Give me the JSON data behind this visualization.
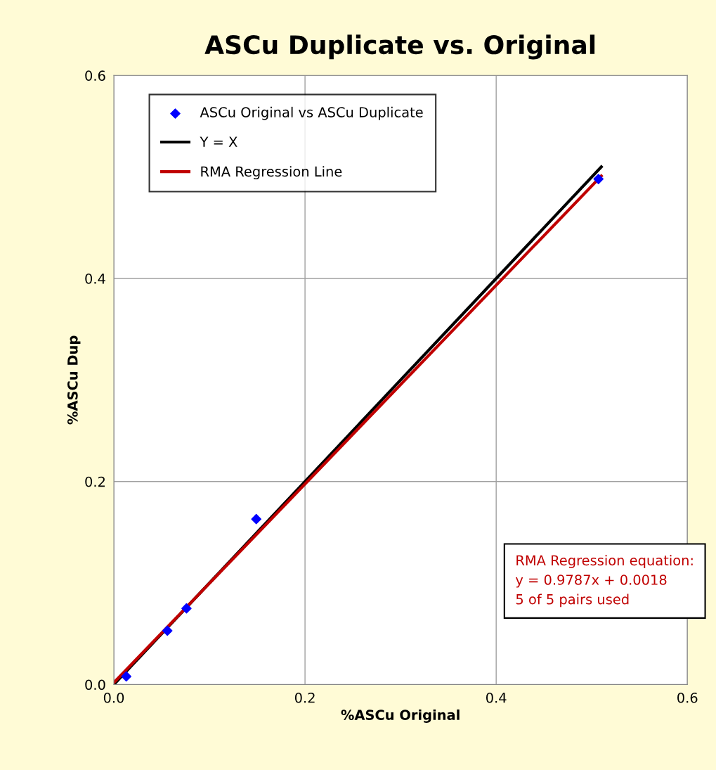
{
  "chart_data": {
    "type": "scatter",
    "title": "ASCu Duplicate vs. Original",
    "xlabel": "%ASCu Original",
    "ylabel": "%ASCu Dup",
    "series": [
      {
        "name": "ASCu Original vs ASCu Duplicate",
        "color": "#0000ff",
        "marker": "diamond",
        "x": [
          0.013,
          0.056,
          0.076,
          0.149,
          0.507
        ],
        "values": [
          0.008,
          0.053,
          0.075,
          0.163,
          0.498
        ]
      },
      {
        "name": "Y = X",
        "type": "line",
        "color": "#000000",
        "marker": "none",
        "line_style": "solid",
        "x": [
          0,
          0.51
        ],
        "values": [
          0,
          0.51
        ]
      },
      {
        "name": "RMA Regression Line",
        "type": "line",
        "color": "#c00000",
        "marker": "none",
        "line_style": "solid",
        "x": [
          0,
          0.51
        ],
        "values": [
          0.0018,
          0.501
        ]
      }
    ],
    "xlim": [
      0,
      0.6
    ],
    "ylim": [
      0,
      0.6
    ],
    "xticks": [
      {
        "value": 0,
        "label": "0.0"
      },
      0.2,
      0.4,
      0.6
    ],
    "yticks": [
      {
        "value": 0,
        "label": "0.0"
      },
      0.2,
      0.4,
      0.6
    ],
    "grid": true,
    "legend": "top left",
    "annotations": [
      "RMA Regression equation:\ny = 0.9787x + 0.0018\n5 of 5 pairs used"
    ]
  }
}
